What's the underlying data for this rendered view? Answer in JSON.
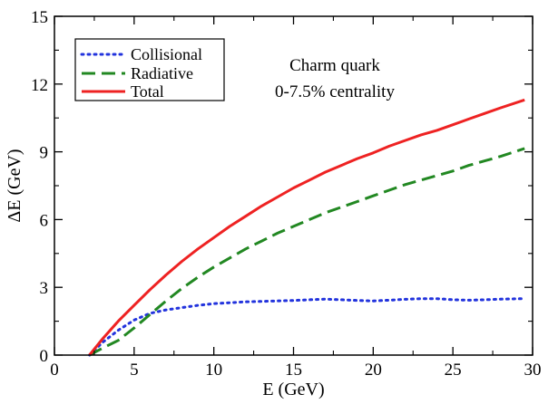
{
  "chart_data": {
    "type": "line",
    "xlabel": "E (GeV)",
    "ylabel": "ΔE (GeV)",
    "xlim": [
      0,
      30
    ],
    "ylim": [
      0,
      15
    ],
    "xticks": [
      0,
      5,
      10,
      15,
      20,
      25,
      30
    ],
    "yticks": [
      0,
      3,
      6,
      9,
      12,
      15
    ],
    "grid": false,
    "legend_position": "top-left",
    "annotations": [
      "Charm quark",
      "0-7.5% centrality"
    ],
    "series": [
      {
        "name": "Collisional",
        "style": "dotted",
        "color": "#2233dd",
        "x": [
          2.2,
          3,
          4,
          5,
          6,
          7,
          8,
          9,
          10,
          11,
          12,
          13,
          14,
          15,
          16,
          17,
          18,
          19,
          20,
          21,
          22,
          23,
          24,
          25,
          26,
          27,
          28,
          29.5
        ],
        "y": [
          0.0,
          0.55,
          1.1,
          1.55,
          1.85,
          2.0,
          2.1,
          2.2,
          2.28,
          2.32,
          2.36,
          2.38,
          2.4,
          2.42,
          2.45,
          2.48,
          2.45,
          2.42,
          2.4,
          2.43,
          2.47,
          2.5,
          2.5,
          2.45,
          2.43,
          2.45,
          2.48,
          2.5
        ]
      },
      {
        "name": "Radiative",
        "style": "dashed",
        "color": "#228822",
        "x": [
          2.2,
          3,
          4,
          5,
          6,
          7,
          8,
          9,
          10,
          11,
          12,
          13,
          14,
          15,
          16,
          17,
          18,
          19,
          20,
          21,
          22,
          23,
          24,
          25,
          26,
          27,
          28,
          29.5
        ],
        "y": [
          0.0,
          0.3,
          0.65,
          1.2,
          1.8,
          2.4,
          2.95,
          3.45,
          3.9,
          4.3,
          4.7,
          5.05,
          5.4,
          5.7,
          6.0,
          6.3,
          6.55,
          6.8,
          7.05,
          7.3,
          7.55,
          7.75,
          7.95,
          8.15,
          8.4,
          8.6,
          8.8,
          9.15
        ]
      },
      {
        "name": "Total",
        "style": "solid",
        "color": "#ee2222",
        "x": [
          2.2,
          3,
          4,
          5,
          6,
          7,
          8,
          9,
          10,
          11,
          12,
          13,
          14,
          15,
          16,
          17,
          18,
          19,
          20,
          21,
          22,
          23,
          24,
          25,
          26,
          27,
          28,
          29.5
        ],
        "y": [
          0.0,
          0.7,
          1.5,
          2.2,
          2.9,
          3.55,
          4.15,
          4.7,
          5.2,
          5.7,
          6.15,
          6.6,
          7.0,
          7.4,
          7.75,
          8.1,
          8.4,
          8.7,
          8.95,
          9.25,
          9.5,
          9.75,
          9.95,
          10.2,
          10.45,
          10.7,
          10.95,
          11.3
        ]
      }
    ]
  }
}
